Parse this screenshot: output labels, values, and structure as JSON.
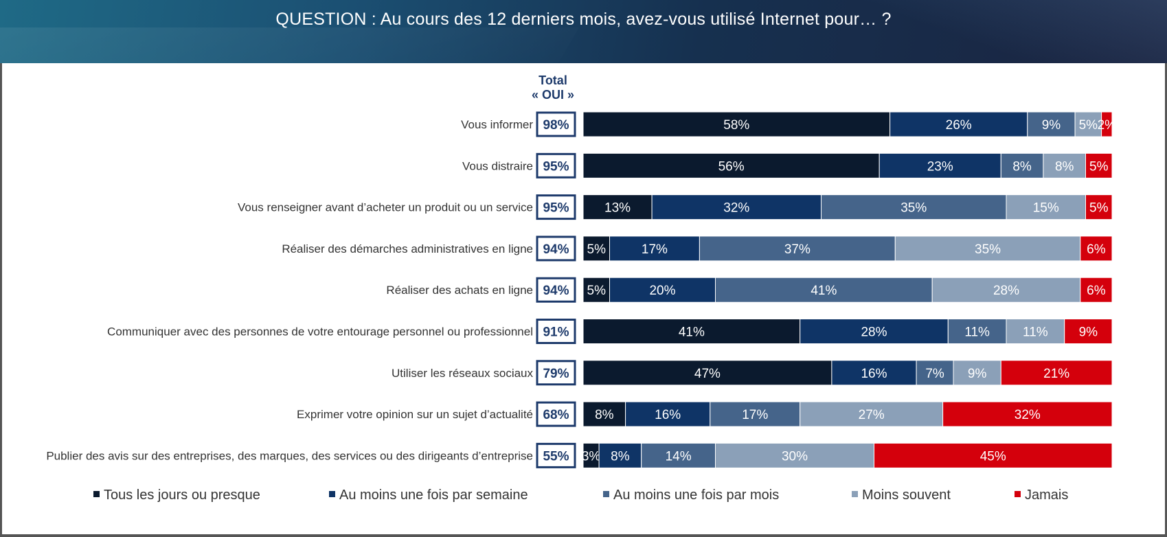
{
  "header": {
    "title": "QUESTION : Au cours des 12 derniers mois, avez-vous utilisé Internet pour… ?"
  },
  "total_header": {
    "line1": "Total",
    "line2": "« OUI »"
  },
  "colors": {
    "Tous les jours ou presque": "#0b1a2e",
    "Au moins une fois par semaine": "#0f3466",
    "Au moins une fois par mois": "#45648a",
    "Moins souvent": "#8ba0b8",
    "Jamais": "#d4000c",
    "total_box_border": "#1d3a6b"
  },
  "chart_data": {
    "type": "bar",
    "orientation": "horizontal",
    "stacked": true,
    "categories": [
      "Vous informer",
      "Vous distraire",
      "Vous renseigner avant d’acheter un produit ou un service",
      "Réaliser des démarches administratives en ligne",
      "Réaliser des achats en ligne",
      "Communiquer avec des personnes de votre entourage personnel ou professionnel",
      "Utiliser les réseaux sociaux",
      "Exprimer votre opinion sur un sujet d’actualité",
      "Publier des avis sur des entreprises, des marques, des services ou des dirigeants d’entreprise"
    ],
    "totals_oui": [
      "98%",
      "95%",
      "95%",
      "94%",
      "94%",
      "91%",
      "79%",
      "68%",
      "55%"
    ],
    "series": [
      {
        "name": "Tous les jours ou presque",
        "values": [
          58,
          56,
          13,
          5,
          5,
          41,
          47,
          8,
          3
        ]
      },
      {
        "name": "Au moins une fois par semaine",
        "values": [
          26,
          23,
          32,
          17,
          20,
          28,
          16,
          16,
          8
        ]
      },
      {
        "name": "Au moins une fois par mois",
        "values": [
          9,
          8,
          35,
          37,
          41,
          11,
          7,
          17,
          14
        ]
      },
      {
        "name": "Moins souvent",
        "values": [
          5,
          8,
          15,
          35,
          28,
          11,
          9,
          27,
          30
        ]
      },
      {
        "name": "Jamais",
        "values": [
          2,
          5,
          5,
          6,
          6,
          9,
          21,
          32,
          45
        ]
      }
    ],
    "value_suffix": "%",
    "legend_position": "bottom"
  }
}
